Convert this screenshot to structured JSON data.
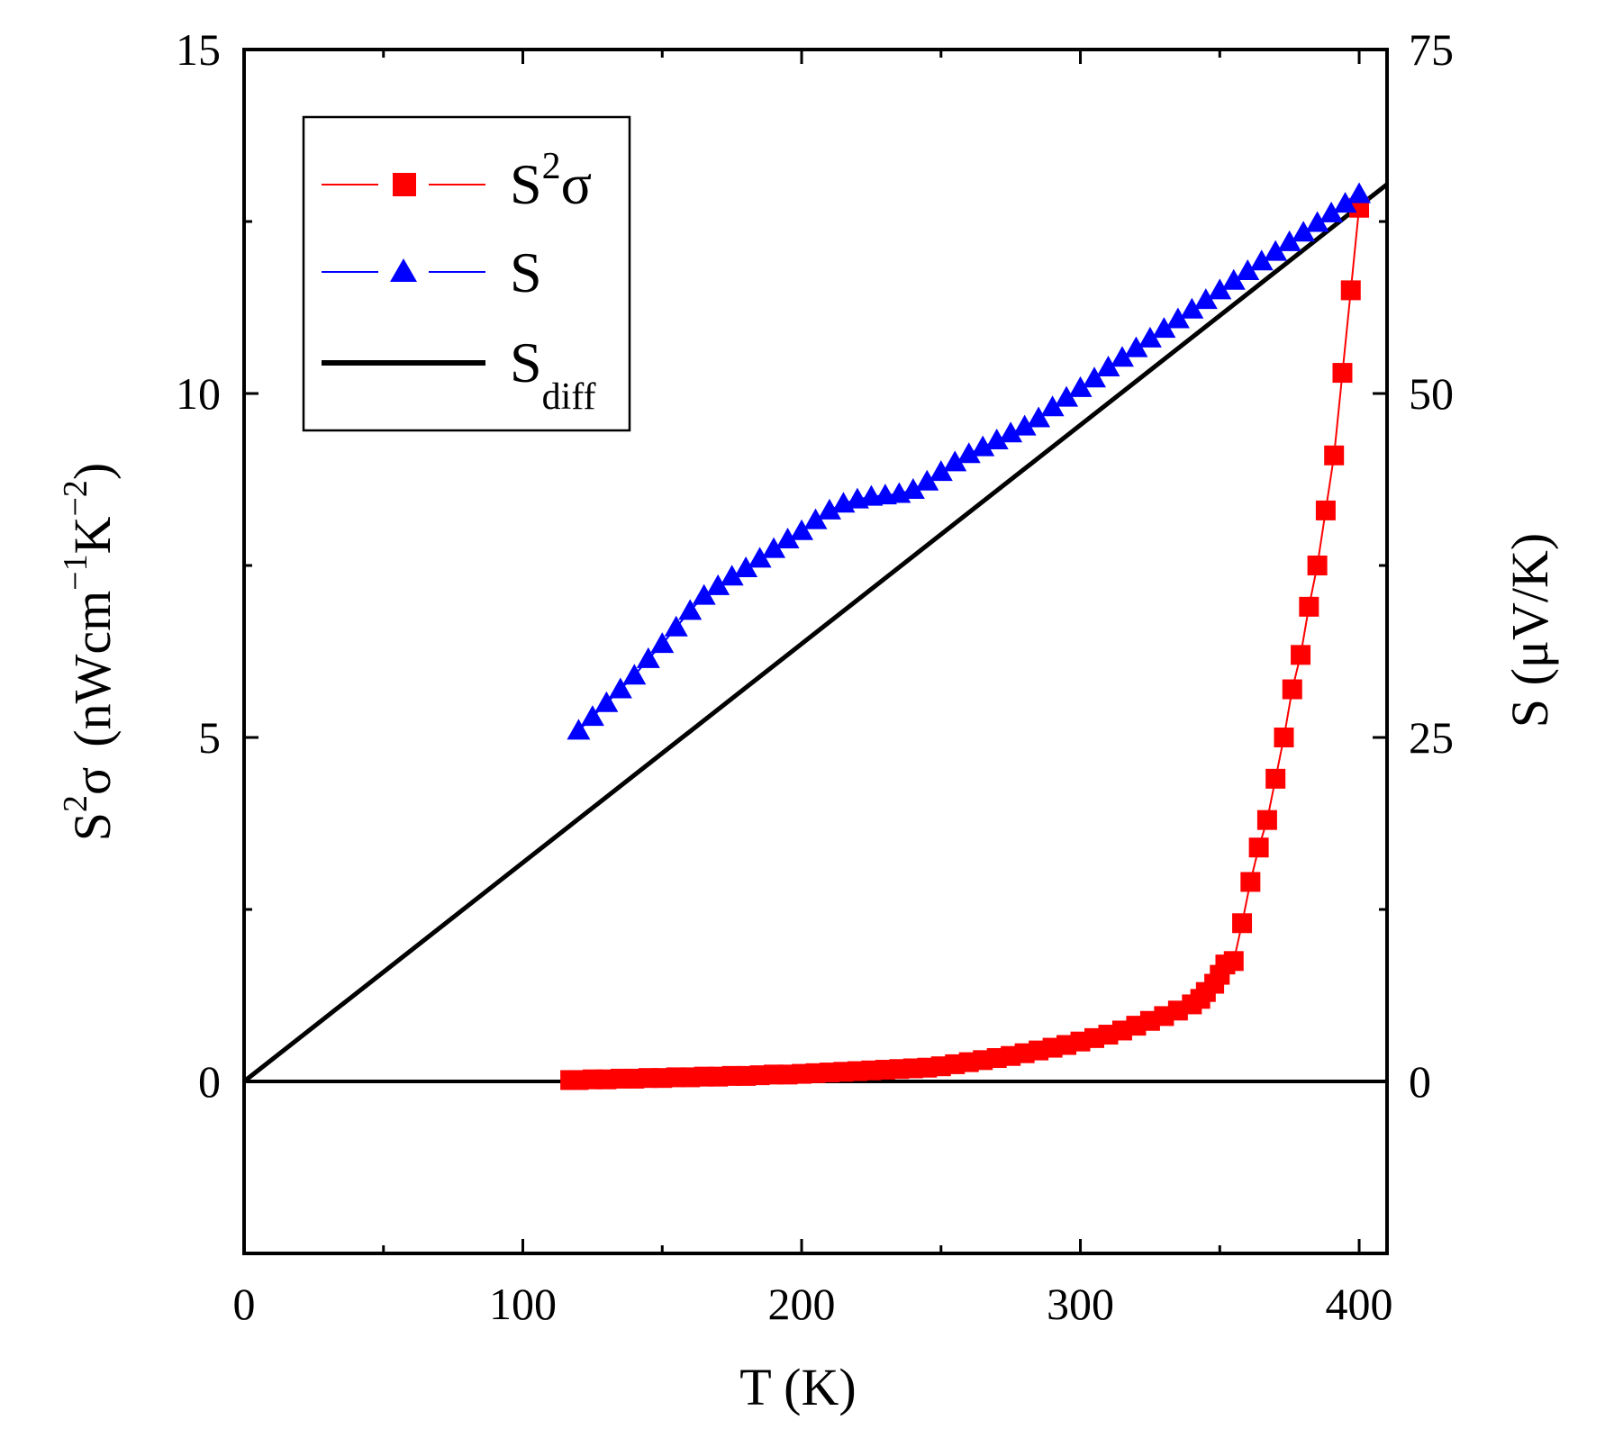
{
  "chart_data": {
    "type": "line",
    "title": "",
    "xlabel": "T  (K)",
    "xlim": [
      0,
      410
    ],
    "xticks": [
      "0",
      "100",
      "200",
      "300",
      "400"
    ],
    "y_left": {
      "label_main": "S",
      "label_sup": "2",
      "label_sigma": "σ",
      "label_units": "(nWcm",
      "label_sup1": "−1",
      "label_k": "K",
      "label_sup2": "−2",
      "label_close": ")",
      "lim": [
        -2.5,
        15
      ],
      "ticks": [
        "0",
        "5",
        "10",
        "15"
      ]
    },
    "y_right": {
      "label": "S  (μV/K)",
      "lim": [
        -12.5,
        75
      ],
      "ticks": [
        "0",
        "25",
        "50",
        "75"
      ]
    },
    "legend": {
      "position": "top-left",
      "entries": [
        {
          "main": "S",
          "sup": "2",
          "tail": "σ",
          "sub": ""
        },
        {
          "main": "S",
          "sup": "",
          "tail": "",
          "sub": ""
        },
        {
          "main": "S",
          "sup": "",
          "tail": "",
          "sub": "diff"
        }
      ]
    },
    "series": [
      {
        "name": "S2sigma",
        "axis": "left",
        "color": "#ff0000",
        "marker": "square",
        "x": [
          117,
          120,
          125,
          130,
          135,
          140,
          145,
          150,
          155,
          160,
          165,
          170,
          175,
          180,
          185,
          190,
          195,
          200,
          205,
          210,
          215,
          220,
          225,
          230,
          235,
          240,
          245,
          250,
          255,
          260,
          265,
          270,
          275,
          280,
          285,
          290,
          295,
          300,
          305,
          310,
          315,
          320,
          325,
          330,
          335,
          340,
          343,
          345,
          348,
          350,
          352,
          355,
          358,
          361,
          364,
          367,
          370,
          373,
          376,
          379,
          382,
          385,
          388,
          391,
          394,
          397,
          400
        ],
        "values": [
          0.02,
          0.02,
          0.03,
          0.03,
          0.04,
          0.04,
          0.05,
          0.05,
          0.06,
          0.06,
          0.07,
          0.07,
          0.08,
          0.08,
          0.09,
          0.1,
          0.1,
          0.11,
          0.12,
          0.13,
          0.14,
          0.15,
          0.16,
          0.17,
          0.18,
          0.19,
          0.2,
          0.22,
          0.25,
          0.28,
          0.31,
          0.34,
          0.37,
          0.41,
          0.45,
          0.49,
          0.53,
          0.58,
          0.63,
          0.68,
          0.74,
          0.81,
          0.88,
          0.95,
          1.03,
          1.12,
          1.2,
          1.3,
          1.42,
          1.55,
          1.7,
          1.75,
          2.3,
          2.9,
          3.4,
          3.8,
          4.4,
          5.0,
          5.7,
          6.2,
          6.9,
          7.5,
          8.3,
          9.1,
          10.3,
          11.5,
          12.7
        ]
      },
      {
        "name": "S",
        "axis": "right",
        "color": "#0000ff",
        "marker": "triangle",
        "x": [
          120,
          125,
          130,
          135,
          140,
          145,
          150,
          155,
          160,
          165,
          170,
          175,
          180,
          185,
          190,
          195,
          200,
          205,
          210,
          215,
          220,
          225,
          230,
          235,
          240,
          245,
          250,
          255,
          260,
          265,
          270,
          275,
          280,
          285,
          290,
          295,
          300,
          305,
          310,
          315,
          320,
          325,
          330,
          335,
          340,
          345,
          350,
          355,
          360,
          365,
          370,
          375,
          380,
          385,
          390,
          395,
          400
        ],
        "values": [
          25.5,
          26.5,
          27.5,
          28.5,
          29.5,
          30.7,
          31.8,
          33.0,
          34.2,
          35.3,
          36.0,
          36.7,
          37.3,
          38.0,
          38.7,
          39.4,
          40.0,
          40.8,
          41.5,
          42.0,
          42.3,
          42.5,
          42.6,
          42.7,
          43.0,
          43.6,
          44.3,
          45.0,
          45.6,
          46.1,
          46.6,
          47.1,
          47.6,
          48.2,
          49.0,
          49.7,
          50.4,
          51.1,
          51.9,
          52.6,
          53.3,
          54.0,
          54.7,
          55.4,
          56.1,
          56.8,
          57.5,
          58.2,
          58.9,
          59.6,
          60.3,
          61.0,
          61.7,
          62.4,
          63.1,
          63.8,
          64.5
        ]
      },
      {
        "name": "Sdiff",
        "axis": "right",
        "color": "#000000",
        "marker": "none",
        "x": [
          0,
          410
        ],
        "values": [
          0,
          65.2
        ]
      }
    ]
  }
}
